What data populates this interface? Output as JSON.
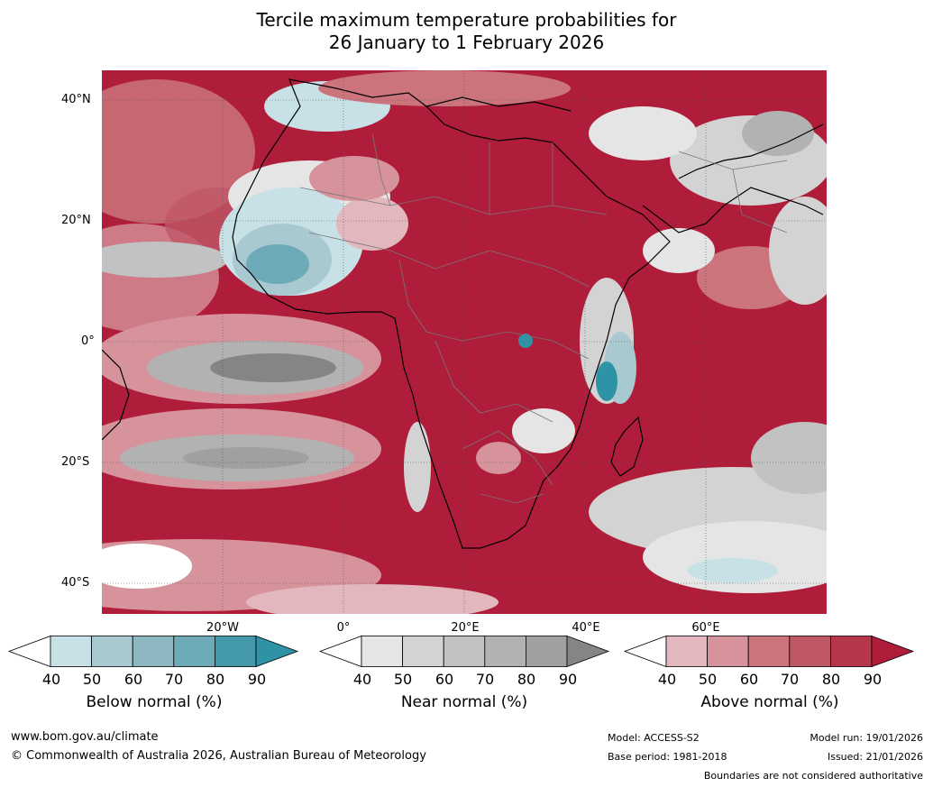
{
  "title_line1": "Tercile maximum temperature probabilities for",
  "title_line2": "26 January to 1 February 2026",
  "lat_labels": [
    "40°N",
    "20°N",
    "0°",
    "20°S",
    "40°S"
  ],
  "lon_labels": [
    "20°W",
    "0°",
    "20°E",
    "40°E",
    "60°E"
  ],
  "colorbars": [
    {
      "name": "below",
      "label": "Below normal (%)",
      "ticks": [
        "40",
        "50",
        "60",
        "70",
        "80",
        "90"
      ],
      "colors": [
        "#ffffff",
        "#c8e1e7",
        "#a9c9d0",
        "#8cb6c0",
        "#6cabb7",
        "#4398aa",
        "#2f93a6"
      ]
    },
    {
      "name": "near",
      "label": "Near normal (%)",
      "ticks": [
        "40",
        "50",
        "60",
        "70",
        "80",
        "90"
      ],
      "colors": [
        "#ffffff",
        "#e5e5e5",
        "#d3d3d3",
        "#c2c2c2",
        "#b2b2b2",
        "#a0a0a0",
        "#858585"
      ]
    },
    {
      "name": "above",
      "label": "Above normal (%)",
      "ticks": [
        "40",
        "50",
        "60",
        "70",
        "80",
        "90"
      ],
      "colors": [
        "#ffffff",
        "#e2b8be",
        "#d6939b",
        "#cb747c",
        "#bf5866",
        "#b6374b",
        "#b01d3a"
      ]
    }
  ],
  "footer": {
    "website": "www.bom.gov.au/climate",
    "copyright": "© Commonwealth of Australia 2026, Australian Bureau of Meteorology",
    "model": "Model: ACCESS-S2",
    "base_period": "Base period: 1981-2018",
    "model_run": "Model run: 19/01/2026",
    "issued": "Issued: 21/01/2026",
    "disclaimer": "Boundaries are not considered authoritative"
  }
}
